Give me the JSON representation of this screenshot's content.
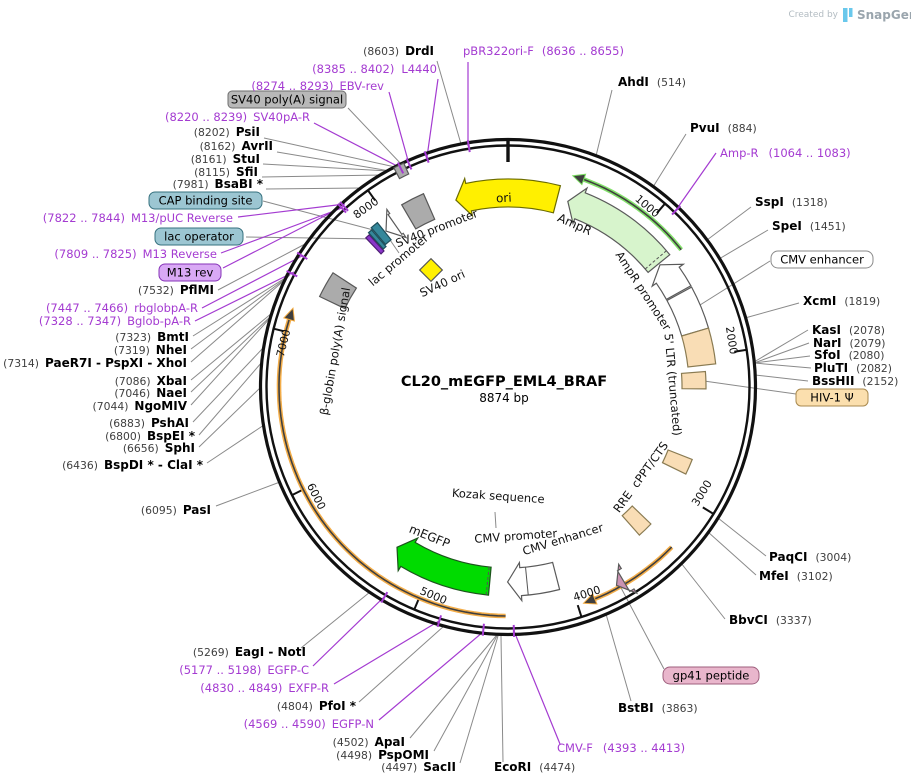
{
  "credit": {
    "created_by": "Created by",
    "brand": "SnapGene"
  },
  "plasmid": {
    "name": "CL20_mEGFP_EML4_BRAF",
    "size": "8874 bp"
  },
  "ticks": [
    "1000",
    "2000",
    "3000",
    "4000",
    "5000",
    "6000",
    "7000",
    "8000"
  ],
  "features": {
    "ori": "ori",
    "ampr": "AmpR",
    "ampr_promoter": "AmpR promoter",
    "ltr5": "5' LTR (truncated)",
    "cppt": "cPPT/CTS",
    "rre": "RRE",
    "kozak": "Kozak sequence",
    "cmv_promoter": "CMV promoter",
    "cmv_enhancer": "CMV enhancer",
    "megfp": "mEGFP",
    "bglobin_polya": "β-globin poly(A) signal",
    "lac_promoter": "lac promoter",
    "sv40_promoter": "SV40 promoter",
    "sv40_ori": "SV40 ori"
  },
  "boxes": {
    "sv40_polya": "SV40 poly(A) signal",
    "cap_binding": "CAP binding site",
    "lac_operator": "lac operator",
    "m13_rev": "M13 rev",
    "cmv_enhancer": "CMV enhancer",
    "hiv_psi": "HIV-1 Ψ",
    "gp41": "gp41 peptide"
  },
  "colors": {
    "primer": "#A43BD1",
    "orf_frame1": "#F2A93F",
    "orf_frame2": "#7CDE63",
    "megfp": "#00DB00",
    "ampr_fill": "#D7F4CC",
    "peach": "#F9DDB5",
    "yellow": "#FFF000",
    "gray_feature": "#ABABAB",
    "teal": "#35889B"
  },
  "sites": [
    {
      "num": "(8603)",
      "name": "DrdI"
    },
    {
      "num": "(8636 .. 8655)",
      "name": "pBR322ori-F"
    },
    {
      "num": "(8385 .. 8402)",
      "name": "L4440"
    },
    {
      "num": "(8274 .. 8293)",
      "name": "EBV-rev"
    },
    {
      "num": "(8220 .. 8239)",
      "name": "SV40pA-R"
    },
    {
      "num": "(8202)",
      "name": "PsiI"
    },
    {
      "num": "(8162)",
      "name": "AvrII"
    },
    {
      "num": "(8161)",
      "name": "StuI"
    },
    {
      "num": "(8115)",
      "name": "SfiI"
    },
    {
      "num": "(7981)",
      "name": "BsaBI *"
    },
    {
      "num": "(7822 .. 7844)",
      "name": "M13/pUC Reverse"
    },
    {
      "num": "(7809 .. 7825)",
      "name": "M13 Reverse"
    },
    {
      "num": "(7532)",
      "name": "PflMI"
    },
    {
      "num": "(7447 .. 7466)",
      "name": "rbglobpA-R"
    },
    {
      "num": "(7328 .. 7347)",
      "name": "Bglob-pA-R"
    },
    {
      "num": "(7323)",
      "name": "BmtI"
    },
    {
      "num": "(7319)",
      "name": "NheI"
    },
    {
      "num": "(7314)",
      "name": "PaeR7I - PspXI - XhoI"
    },
    {
      "num": "(7086)",
      "name": "XbaI"
    },
    {
      "num": "(7046)",
      "name": "NaeI"
    },
    {
      "num": "(7044)",
      "name": "NgoMIV"
    },
    {
      "num": "(6883)",
      "name": "PshAI"
    },
    {
      "num": "(6800)",
      "name": "BspEI *"
    },
    {
      "num": "(6656)",
      "name": "SphI"
    },
    {
      "num": "(6436)",
      "name": "BspDI * - ClaI *"
    },
    {
      "num": "(6095)",
      "name": "PasI"
    },
    {
      "num": "(5269)",
      "name": "EagI - NotI"
    },
    {
      "num": "(5177 .. 5198)",
      "name": "EGFP-C"
    },
    {
      "num": "(4830 .. 4849)",
      "name": "EXFP-R"
    },
    {
      "num": "(4804)",
      "name": "PfoI *"
    },
    {
      "num": "(4569 .. 4590)",
      "name": "EGFP-N"
    },
    {
      "num": "(4502)",
      "name": "ApaI"
    },
    {
      "num": "(4498)",
      "name": "PspOMI"
    },
    {
      "num": "(4497)",
      "name": "SacII"
    },
    {
      "num": "(4474)",
      "name": "EcoRI"
    },
    {
      "num": "(4393 .. 4413)",
      "name": "CMV-F"
    },
    {
      "num": "(3863)",
      "name": "BstBI"
    },
    {
      "num": "(3337)",
      "name": "BbvCI"
    },
    {
      "num": "(3102)",
      "name": "MfeI"
    },
    {
      "num": "(3004)",
      "name": "PaqCI"
    },
    {
      "num": "(2152)",
      "name": "BssHII"
    },
    {
      "num": "(2082)",
      "name": "PluTI"
    },
    {
      "num": "(2080)",
      "name": "SfoI"
    },
    {
      "num": "(2079)",
      "name": "NarI"
    },
    {
      "num": "(2078)",
      "name": "KasI"
    },
    {
      "num": "(1819)",
      "name": "XcmI"
    },
    {
      "num": "(1451)",
      "name": "SpeI"
    },
    {
      "num": "(1318)",
      "name": "SspI"
    },
    {
      "num": "(1064 .. 1083)",
      "name": "Amp-R"
    },
    {
      "num": "(884)",
      "name": "PvuI"
    },
    {
      "num": "(514)",
      "name": "AhdI"
    }
  ]
}
